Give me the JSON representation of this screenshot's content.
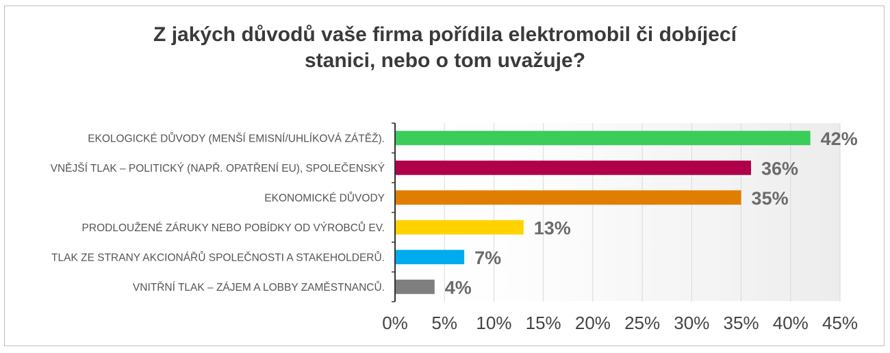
{
  "chart_data": {
    "type": "bar",
    "orientation": "horizontal",
    "title_lines": [
      "Z jakých důvodů vaše firma pořídila elektromobil či dobíjecí",
      "stanici, nebo o tom uvažuje?"
    ],
    "categories": [
      "EKOLOGICKÉ DŮVODY (MENŠÍ EMISNÍ/UHLÍKOVÁ ZÁTĚŽ).",
      "VNĚJŠÍ TLAK – POLITICKÝ (NAPŘ. OPATŘENÍ EU), SPOLEČENSKÝ",
      "EKONOMICKÉ DŮVODY",
      "PRODLOUŽENÉ ZÁRUKY NEBO POBÍDKY OD VÝROBCŮ EV.",
      "TLAK ZE STRANY AKCIONÁŘŮ SPOLEČNOSTI A STAKEHOLDERŮ.",
      "VNITŘNÍ TLAK – ZÁJEM A LOBBY ZAMĚSTNANCŮ."
    ],
    "values": [
      42,
      36,
      35,
      13,
      7,
      4
    ],
    "value_labels": [
      "42%",
      "36%",
      "35%",
      "13%",
      "7%",
      "4%"
    ],
    "colors": [
      "#3ccc5a",
      "#b0004a",
      "#e07e00",
      "#ffd200",
      "#00aaee",
      "#7f7f7f"
    ],
    "xlim": [
      0,
      45
    ],
    "xticks": [
      0,
      5,
      10,
      15,
      20,
      25,
      30,
      35,
      40,
      45
    ],
    "xtick_labels": [
      "0%",
      "5%",
      "10%",
      "15%",
      "20%",
      "25%",
      "30%",
      "35%",
      "40%",
      "45%"
    ],
    "grid": "vertical",
    "legend": "none"
  }
}
